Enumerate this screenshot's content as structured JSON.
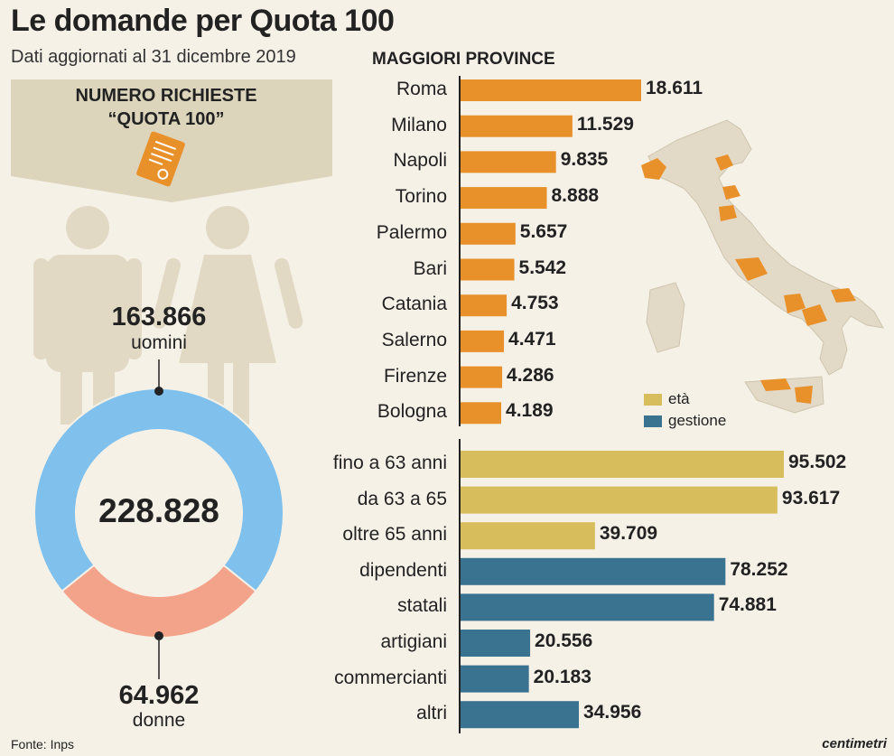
{
  "title": "Le domande per Quota 100",
  "subtitle": "Dati aggiornati al 31 dicembre 2019",
  "banner": {
    "line1": "NUMERO RICHIESTE",
    "line2": "“QUOTA 100”"
  },
  "total": "228.828",
  "men": {
    "value": "163.866",
    "label": "uomini"
  },
  "women": {
    "value": "64.962",
    "label": "donne"
  },
  "source": "Fonte: Inps",
  "brand": "centimetri",
  "colors": {
    "background": "#f6f1e7",
    "province": "#e8902a",
    "eta": "#d8bd5d",
    "gestione": "#3a7390",
    "men": "#7fc0ec",
    "women": "#f4a38b",
    "figure": "#e2d9c4",
    "map": "#e2dac7"
  },
  "legend": [
    {
      "label": "età",
      "color": "#d8bd5d"
    },
    {
      "label": "gestione",
      "color": "#3a7390"
    }
  ],
  "chart_data": [
    {
      "type": "pie",
      "title": "NUMERO RICHIESTE “QUOTA 100”",
      "categories": [
        "uomini",
        "donne"
      ],
      "values": [
        163866,
        64962
      ],
      "total": 228828
    },
    {
      "type": "bar",
      "title": "MAGGIORI PROVINCE",
      "orientation": "horizontal",
      "categories": [
        "Roma",
        "Milano",
        "Napoli",
        "Torino",
        "Palermo",
        "Bari",
        "Catania",
        "Salerno",
        "Firenze",
        "Bologna"
      ],
      "values": [
        18611,
        11529,
        9835,
        8888,
        5657,
        5542,
        4753,
        4471,
        4286,
        4189
      ],
      "labels": [
        "18.611",
        "11.529",
        "9.835",
        "8.888",
        "5.657",
        "5.542",
        "4.753",
        "4.471",
        "4.286",
        "4.189"
      ]
    },
    {
      "type": "bar",
      "orientation": "horizontal",
      "categories": [
        "fino a 63 anni",
        "da 63 a 65",
        "oltre 65 anni",
        "dipendenti",
        "statali",
        "artigiani",
        "commercianti",
        "altri"
      ],
      "values": [
        95502,
        93617,
        39709,
        78252,
        74881,
        20556,
        20183,
        34956
      ],
      "labels": [
        "95.502",
        "93.617",
        "39.709",
        "78.252",
        "74.881",
        "20.556",
        "20.183",
        "34.956"
      ],
      "groups": [
        "età",
        "età",
        "età",
        "gestione",
        "gestione",
        "gestione",
        "gestione",
        "gestione"
      ],
      "legend": [
        "età",
        "gestione"
      ]
    }
  ]
}
